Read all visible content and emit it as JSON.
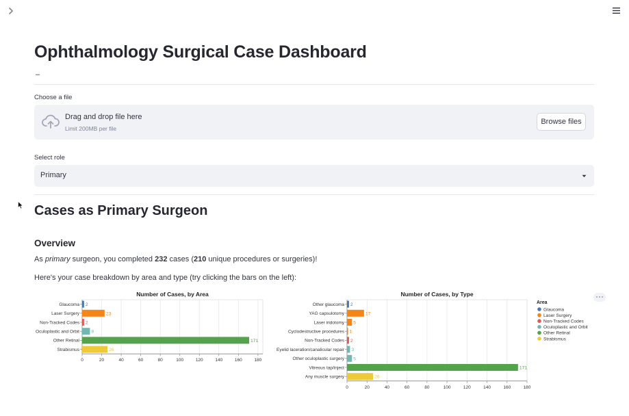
{
  "title": "Ophthalmology Surgical Case Dashboard",
  "title_dash": "–",
  "uploader": {
    "label": "Choose a file",
    "drop_text": "Drag and drop file here",
    "limit_text": "Limit 200MB per file",
    "browse_label": "Browse files"
  },
  "role_select": {
    "label": "Select role",
    "value": "Primary"
  },
  "section_title": "Cases as Primary Surgeon",
  "overview": {
    "heading": "Overview",
    "text_pre": "As ",
    "role_word": "primary",
    "text_mid": " surgeon, you completed ",
    "cases": "232",
    "text_mid2": " cases (",
    "unique": "210",
    "text_post": " unique procedures or surgeries)!",
    "breakdown_text": "Here's your case breakdown by area and type (try clicking the bars on the left):"
  },
  "legend": {
    "title": "Area",
    "items": [
      {
        "label": "Glaucoma",
        "color": "#4c78a8"
      },
      {
        "label": "Laser Surgery",
        "color": "#f58518"
      },
      {
        "label": "Non-Tracked Codes",
        "color": "#e45756"
      },
      {
        "label": "Oculoplastic and Orbit",
        "color": "#72b7b2"
      },
      {
        "label": "Other Retinal",
        "color": "#54a24b"
      },
      {
        "label": "Strabismus",
        "color": "#eeca3b"
      }
    ]
  },
  "chart_data": [
    {
      "type": "bar",
      "orientation": "horizontal",
      "title": "Number of Cases, by Area",
      "categories": [
        "Glaucoma",
        "Laser Surgery",
        "Non-Tracked Codes",
        "Oculoplastic and Orbit",
        "Other Retinal",
        "Strabismus"
      ],
      "values": [
        2,
        23,
        2,
        8,
        171,
        26
      ],
      "colors": [
        "#4c78a8",
        "#f58518",
        "#e45756",
        "#72b7b2",
        "#54a24b",
        "#eeca3b"
      ],
      "xlim": [
        0,
        185
      ],
      "ticks": [
        0,
        20,
        40,
        60,
        80,
        100,
        120,
        140,
        160,
        180
      ],
      "grid": true
    },
    {
      "type": "bar",
      "orientation": "horizontal",
      "title": "Number of Cases, by Type",
      "categories": [
        "Other glaucoma",
        "YAG capsulotomy",
        "Laser iridotomy",
        "Cyclodestructive procedures",
        "Non-Tracked Codes",
        "Eyelid laceration/canalicular repair",
        "Other oculoplastic surgery",
        "Vitreous tap/inject",
        "Any muscle surgery"
      ],
      "values": [
        2,
        17,
        5,
        1,
        2,
        3,
        5,
        171,
        26
      ],
      "colors": [
        "#4c78a8",
        "#f58518",
        "#f58518",
        "#f58518",
        "#e45756",
        "#72b7b2",
        "#72b7b2",
        "#54a24b",
        "#eeca3b"
      ],
      "xlim": [
        0,
        180
      ],
      "ticks": [
        0,
        20,
        40,
        60,
        80,
        100,
        120,
        140,
        160,
        180
      ],
      "grid": true,
      "legend": "right"
    }
  ]
}
